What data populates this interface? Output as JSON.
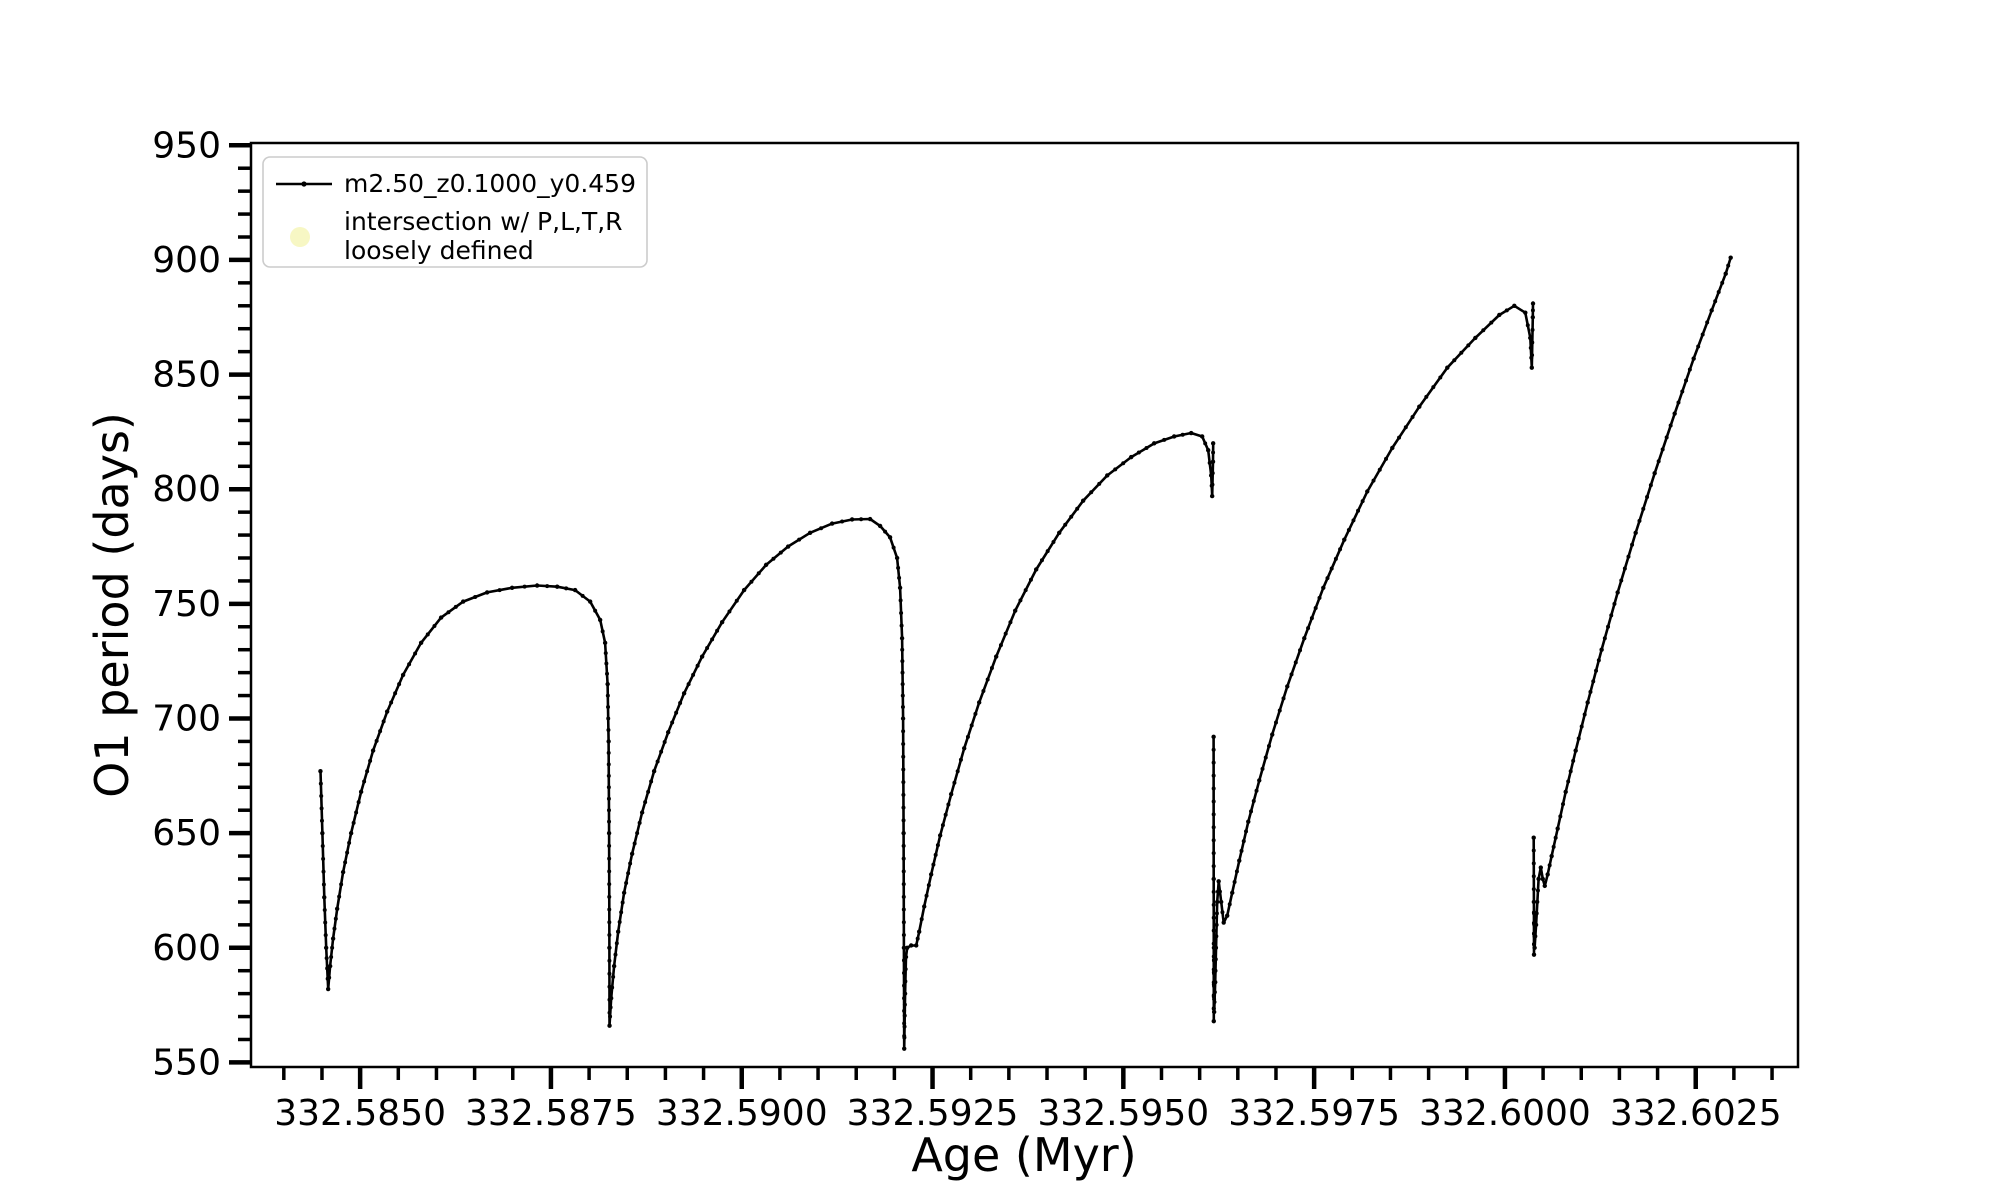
{
  "chart_data": {
    "type": "line",
    "title": "",
    "xlabel": "Age (Myr)",
    "ylabel": "O1 period (days)",
    "xlim": [
      332.58357,
      332.60384
    ],
    "ylim": [
      548,
      951
    ],
    "grid": false,
    "x_major_ticks": [
      332.585,
      332.5875,
      332.59,
      332.5925,
      332.595,
      332.5975,
      332.6,
      332.6025
    ],
    "x_tick_labels": [
      "332.5850",
      "332.5875",
      "332.5900",
      "332.5925",
      "332.5950",
      "332.5975",
      "332.6000",
      "332.6025"
    ],
    "x_minor_step": 0.0005,
    "y_major_ticks": [
      550,
      600,
      650,
      700,
      750,
      800,
      850,
      900,
      950
    ],
    "y_tick_labels": [
      "550",
      "600",
      "650",
      "700",
      "750",
      "800",
      "850",
      "900",
      "950"
    ],
    "y_minor_step": 10,
    "axis_color": "#000000",
    "legend": {
      "position": "upper-left",
      "items": [
        {
          "label_lines": [
            "m2.50_z0.1000_y0.459"
          ],
          "marker": "line-dot",
          "color": "#000000"
        },
        {
          "label_lines": [
            "intersection w/ P,L,T,R",
            "loosely defined"
          ],
          "marker": "circle",
          "color": "#f7f7c4"
        }
      ]
    },
    "series": [
      {
        "name": "m2.50_z0.1000_y0.459",
        "color": "#000000",
        "marker": "point",
        "segments": [
          [
            [
              332.58448,
              677
            ],
            [
              332.584505,
              650
            ],
            [
              332.58453,
              622
            ],
            [
              332.584555,
              600
            ],
            [
              332.584581,
              582
            ],
            [
              332.584607,
              592
            ],
            [
              332.584646,
              604
            ],
            [
              332.584699,
              617
            ],
            [
              332.584777,
              633
            ],
            [
              332.584882,
              650
            ],
            [
              332.585013,
              668
            ],
            [
              332.58517,
              686
            ],
            [
              332.585354,
              703
            ],
            [
              332.585563,
              719
            ],
            [
              332.585799,
              733
            ],
            [
              332.586061,
              744
            ],
            [
              332.58635,
              751
            ],
            [
              332.586664,
              755
            ],
            [
              332.586991,
              757
            ],
            [
              332.587319,
              758
            ],
            [
              332.587582,
              757.5
            ],
            [
              332.587817,
              756
            ],
            [
              332.588014,
              751
            ],
            [
              332.588145,
              743
            ],
            [
              332.58821,
              733
            ],
            [
              332.588243,
              715
            ],
            [
              332.588256,
              690
            ],
            [
              332.588262,
              650
            ],
            [
              332.588266,
              600
            ],
            [
              332.588268,
              566
            ],
            [
              332.588289,
              578
            ],
            [
              332.588328,
              592
            ],
            [
              332.588381,
              607
            ],
            [
              332.588459,
              624
            ],
            [
              332.588564,
              641
            ],
            [
              332.588695,
              659
            ],
            [
              332.588852,
              677
            ],
            [
              332.589036,
              694
            ],
            [
              332.589245,
              711
            ],
            [
              332.589481,
              727
            ],
            [
              332.589743,
              742
            ],
            [
              332.590031,
              756
            ],
            [
              332.590319,
              767
            ],
            [
              332.590608,
              775
            ],
            [
              332.590896,
              781
            ],
            [
              332.591184,
              785
            ],
            [
              332.591446,
              786.8
            ],
            [
              332.591682,
              787
            ],
            [
              332.591813,
              784
            ],
            [
              332.591944,
              779
            ],
            [
              332.592036,
              770
            ],
            [
              332.592075,
              757
            ],
            [
              332.592101,
              735
            ],
            [
              332.592114,
              700
            ],
            [
              332.592121,
              650
            ],
            [
              332.592125,
              600
            ],
            [
              332.592129,
              556
            ],
            [
              332.59214,
              580
            ],
            [
              332.592152,
              596
            ],
            [
              332.592168,
              600
            ],
            [
              332.59222,
              601
            ],
            [
              332.592286,
              601
            ],
            [
              332.592325,
              607
            ],
            [
              332.592391,
              618
            ],
            [
              332.592482,
              632
            ],
            [
              332.5926,
              649
            ],
            [
              332.592744,
              667
            ],
            [
              332.592915,
              687
            ],
            [
              332.593111,
              707
            ],
            [
              332.593334,
              727
            ],
            [
              332.593583,
              747
            ],
            [
              332.593858,
              765
            ],
            [
              332.59416,
              781
            ],
            [
              332.594474,
              795
            ],
            [
              332.594789,
              806
            ],
            [
              332.595103,
              814
            ],
            [
              332.595404,
              820
            ],
            [
              332.595666,
              823
            ],
            [
              332.595889,
              824.5
            ],
            [
              332.596033,
              823
            ],
            [
              332.596112,
              817
            ],
            [
              332.596151,
              806
            ],
            [
              332.596164,
              797
            ],
            [
              332.596175,
              812
            ],
            [
              332.596177,
              820
            ]
          ],
          [
            [
              332.596183,
              692
            ],
            [
              332.596184,
              630
            ],
            [
              332.596185,
              568
            ],
            [
              332.596187,
              600
            ],
            [
              332.59619,
              572
            ],
            [
              332.596204,
              585
            ],
            [
              332.59623,
              620
            ],
            [
              332.596249,
              629
            ],
            [
              332.596282,
              620
            ],
            [
              332.596315,
              611
            ],
            [
              332.596361,
              614
            ],
            [
              332.596427,
              624
            ],
            [
              332.596519,
              638
            ],
            [
              332.596637,
              655
            ],
            [
              332.596781,
              673
            ],
            [
              332.596951,
              693
            ],
            [
              332.597148,
              714
            ],
            [
              332.597371,
              735
            ],
            [
              332.59762,
              757
            ],
            [
              332.597895,
              778
            ],
            [
              332.598196,
              799
            ],
            [
              332.598524,
              818
            ],
            [
              332.598878,
              836
            ],
            [
              332.599245,
              853
            ],
            [
              332.599612,
              866
            ],
            [
              332.599926,
              876
            ],
            [
              332.600123,
              880
            ],
            [
              332.600267,
              877
            ],
            [
              332.600332,
              866
            ],
            [
              332.600352,
              853
            ],
            [
              332.600365,
              875
            ],
            [
              332.600368,
              881
            ]
          ],
          [
            [
              332.600377,
              648
            ],
            [
              332.600379,
              620
            ],
            [
              332.600381,
              597
            ],
            [
              332.600383,
              615
            ],
            [
              332.600389,
              600
            ],
            [
              332.600408,
              610
            ],
            [
              332.600441,
              630
            ],
            [
              332.60047,
              635
            ],
            [
              332.600496,
              630
            ],
            [
              332.600522,
              627
            ],
            [
              332.60056,
              632
            ],
            [
              332.600612,
              640
            ],
            [
              332.600691,
              652
            ],
            [
              332.600796,
              668
            ],
            [
              332.600927,
              686
            ],
            [
              332.601084,
              707
            ],
            [
              332.601267,
              730
            ],
            [
              332.601477,
              755
            ],
            [
              332.601713,
              781
            ],
            [
              332.601962,
              807
            ],
            [
              332.602224,
              833
            ],
            [
              332.602473,
              857
            ],
            [
              332.602709,
              878
            ],
            [
              332.602893,
              894
            ],
            [
              332.602958,
              901
            ]
          ]
        ]
      }
    ]
  }
}
